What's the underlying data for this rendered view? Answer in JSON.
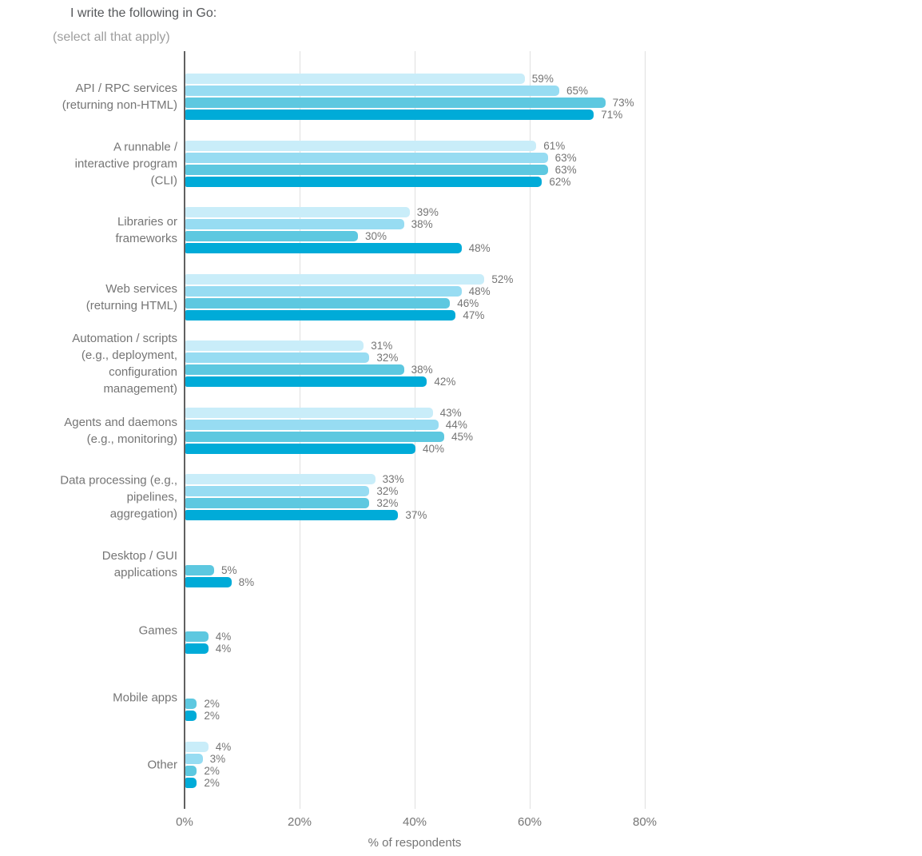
{
  "chart_data": {
    "type": "bar",
    "orientation": "horizontal",
    "title": "I write the following in Go:",
    "subtitle": "(select all that apply)",
    "xlabel": "% of respondents",
    "xlim": [
      0,
      100
    ],
    "grid": true,
    "legend": "none",
    "value_suffix": "%",
    "series_colors": [
      "#c9edf9",
      "#97dcf2",
      "#5dc8e0",
      "#00abd8"
    ],
    "axis_color": "#616161",
    "gridline_color": "#e0e0e0",
    "label_color": "#757575",
    "x_ticks": [
      {
        "value": 0,
        "label": "0%"
      },
      {
        "value": 20,
        "label": "20%"
      },
      {
        "value": 40,
        "label": "40%"
      },
      {
        "value": 60,
        "label": "60%"
      },
      {
        "value": 80,
        "label": "80%"
      }
    ],
    "categories": [
      {
        "label_lines": [
          "API / RPC services",
          "(returning non-HTML)"
        ],
        "values": [
          59,
          65,
          73,
          71
        ]
      },
      {
        "label_lines": [
          "A runnable /",
          "interactive program",
          "(CLI)"
        ],
        "values": [
          61,
          63,
          63,
          62
        ]
      },
      {
        "label_lines": [
          "Libraries or",
          "frameworks"
        ],
        "values": [
          39,
          38,
          30,
          48
        ]
      },
      {
        "label_lines": [
          "Web services",
          "(returning HTML)"
        ],
        "values": [
          52,
          48,
          46,
          47
        ]
      },
      {
        "label_lines": [
          "Automation / scripts",
          "(e.g., deployment,",
          "configuration",
          "management)"
        ],
        "values": [
          31,
          32,
          38,
          42
        ]
      },
      {
        "label_lines": [
          "Agents and daemons",
          "(e.g., monitoring)"
        ],
        "values": [
          43,
          44,
          45,
          40
        ]
      },
      {
        "label_lines": [
          "Data processing (e.g.,",
          "pipelines,",
          "aggregation)"
        ],
        "values": [
          33,
          32,
          32,
          37
        ]
      },
      {
        "label_lines": [
          "Desktop / GUI",
          "applications"
        ],
        "values": [
          null,
          null,
          5,
          8
        ]
      },
      {
        "label_lines": [
          "Games"
        ],
        "values": [
          null,
          null,
          4,
          4
        ]
      },
      {
        "label_lines": [
          "Mobile apps"
        ],
        "values": [
          null,
          null,
          2,
          2
        ]
      },
      {
        "label_lines": [
          "Other"
        ],
        "values": [
          4,
          3,
          2,
          2
        ]
      }
    ]
  }
}
